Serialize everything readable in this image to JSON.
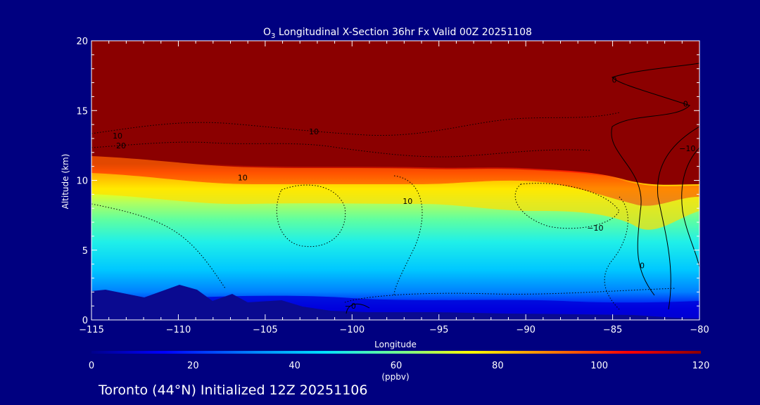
{
  "chart_data": {
    "type": "heatmap",
    "title_base": "O",
    "title_sub": "3",
    "title_rest": " Longitudinal X-Section 36hr  Fx Valid 00Z 20251108",
    "xlabel": "Longitude",
    "ylabel": "Altitude (km)",
    "xlim": [
      -115,
      -80
    ],
    "ylim": [
      0,
      20
    ],
    "x_ticks": [
      -115,
      -110,
      -105,
      -100,
      -95,
      -90,
      -85,
      -80
    ],
    "x_tick_labels": [
      "−115",
      "−110",
      "−105",
      "−100",
      "−95",
      "−90",
      "−85",
      "−80"
    ],
    "y_ticks": [
      0,
      5,
      10,
      15,
      20
    ],
    "y_tick_labels": [
      "0",
      "5",
      "10",
      "15",
      "20"
    ],
    "colorbar": {
      "range": [
        0,
        120
      ],
      "ticks": [
        0,
        20,
        40,
        60,
        80,
        100,
        120
      ],
      "tick_labels": [
        "0",
        "20",
        "40",
        "60",
        "80",
        "100",
        "120"
      ],
      "unit_label": "(ppbv)",
      "colors": [
        "#00008b",
        "#0000ff",
        "#0080ff",
        "#00e0ff",
        "#80ff80",
        "#ffff00",
        "#ff8000",
        "#ff0000",
        "#8b0000"
      ]
    },
    "contour_labels": [
      {
        "text": "10",
        "x": -113.5,
        "y": 13.0
      },
      {
        "text": "20",
        "x": -113.3,
        "y": 12.3
      },
      {
        "text": "10",
        "x": -106.3,
        "y": 10.0
      },
      {
        "text": "10",
        "x": -102.2,
        "y": 13.3
      },
      {
        "text": "10",
        "x": -96.8,
        "y": 8.3
      },
      {
        "text": "−10",
        "x": -86.0,
        "y": 6.4
      },
      {
        "text": "0",
        "x": -83.3,
        "y": 3.7
      },
      {
        "text": "−0",
        "x": -100.1,
        "y": 0.8
      },
      {
        "text": "0",
        "x": -80.8,
        "y": 15.3
      },
      {
        "text": "−10",
        "x": -80.7,
        "y": 12.1
      },
      {
        "text": "0",
        "x": -84.9,
        "y": 17.0
      }
    ],
    "footer": "Toronto (44°N) Initialized 12Z 20251106"
  }
}
